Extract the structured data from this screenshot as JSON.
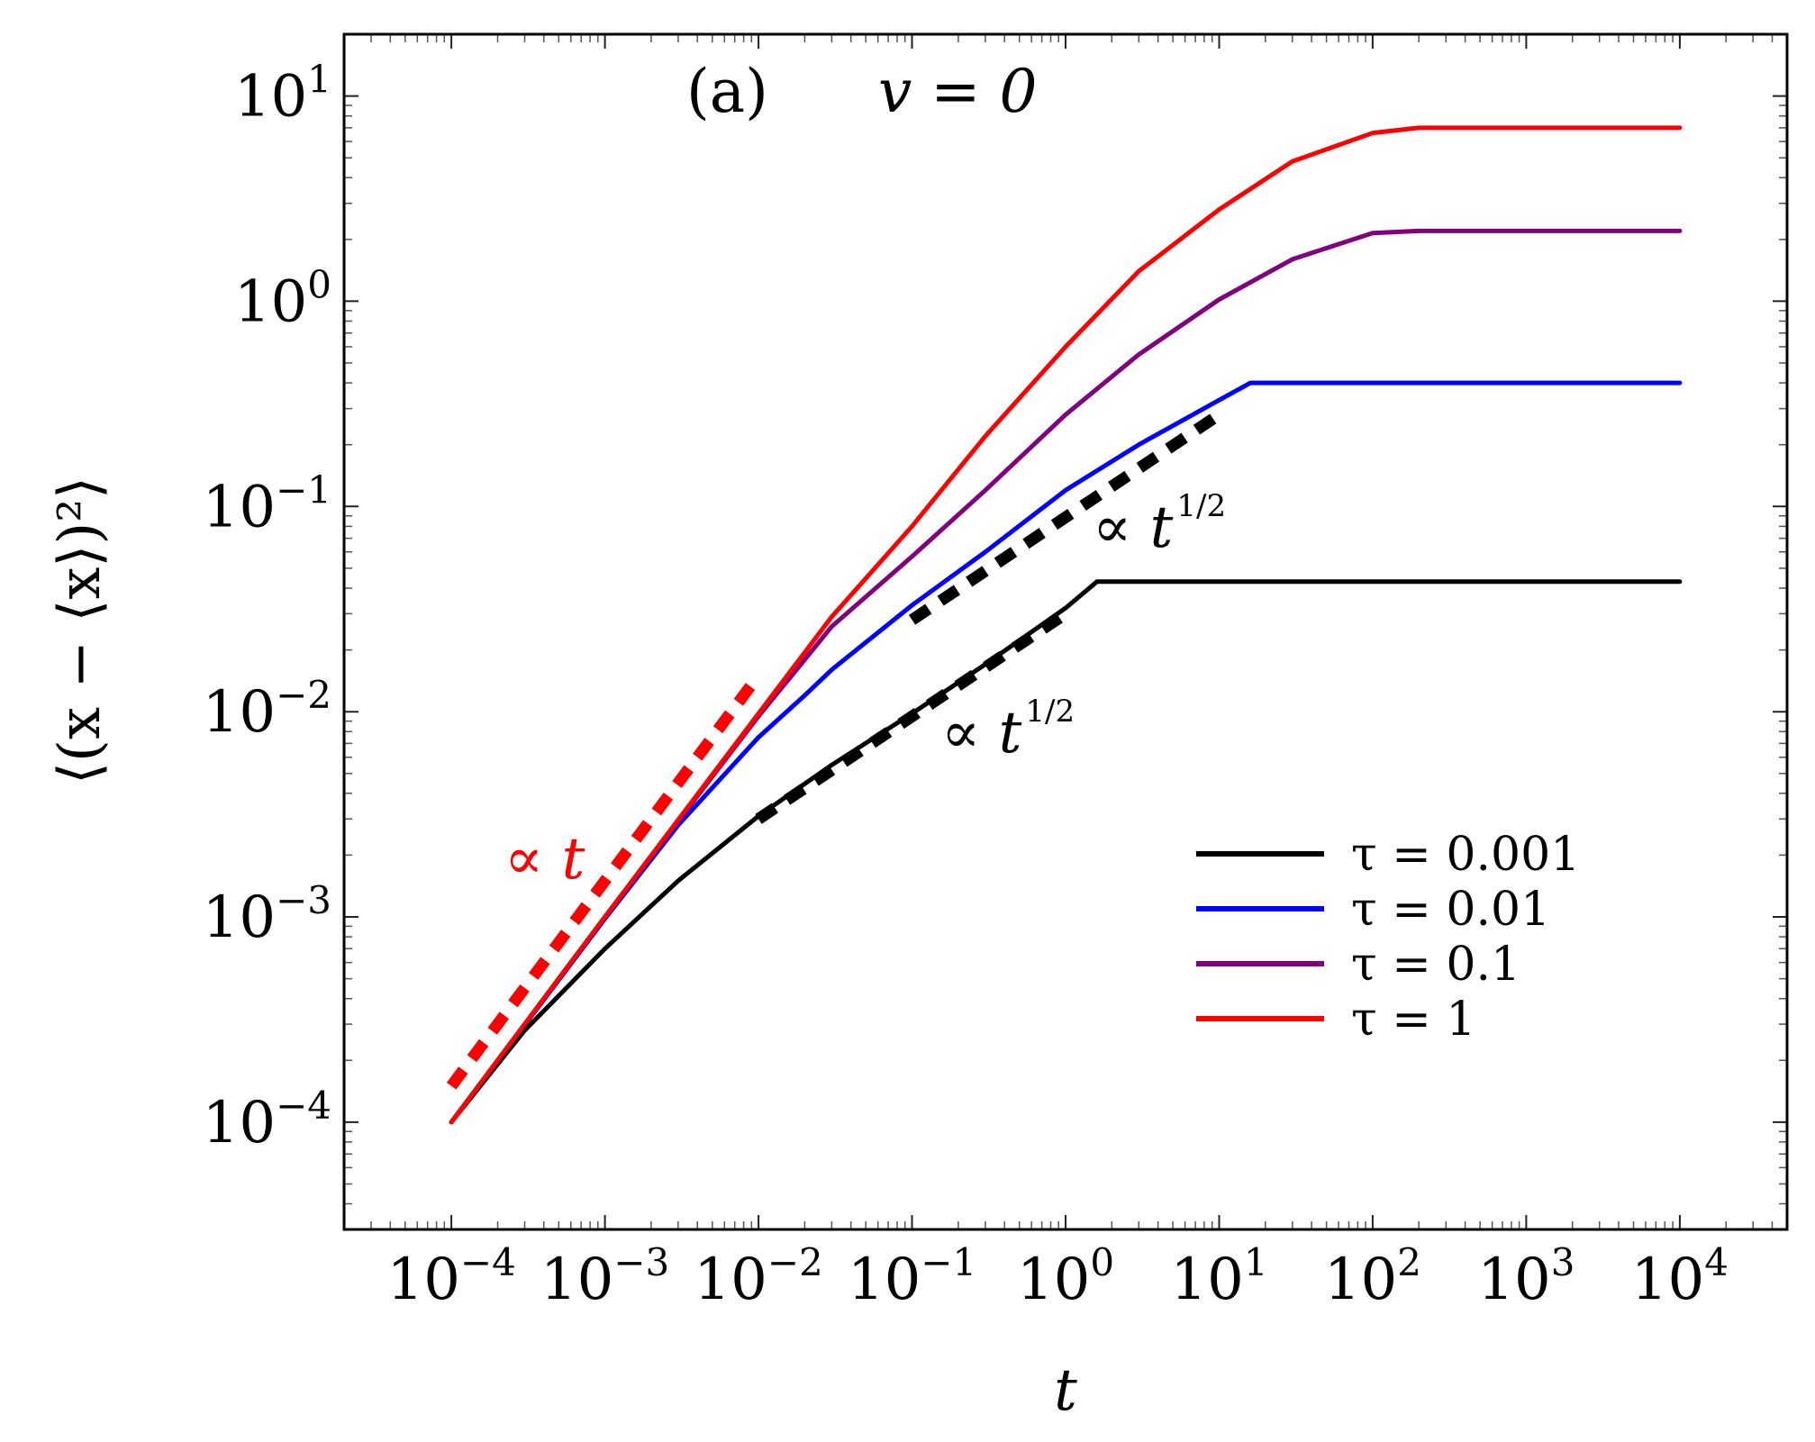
{
  "chart_data": {
    "type": "line",
    "scale": {
      "x": "log",
      "y": "log"
    },
    "xlim": [
      2e-05,
      50000
    ],
    "ylim": [
      3e-05,
      20
    ],
    "xlabel": "t",
    "ylabel": "⟨(x − ⟨x⟩)²⟩",
    "panel_label": "(a)",
    "parameter_label": "v = 0",
    "x_ticks": [
      {
        "base": "10",
        "exp": "−4",
        "value": 0.0001
      },
      {
        "base": "10",
        "exp": "−3",
        "value": 0.001
      },
      {
        "base": "10",
        "exp": "−2",
        "value": 0.01
      },
      {
        "base": "10",
        "exp": "−1",
        "value": 0.1
      },
      {
        "base": "10",
        "exp": "0",
        "value": 1
      },
      {
        "base": "10",
        "exp": "1",
        "value": 10
      },
      {
        "base": "10",
        "exp": "2",
        "value": 100
      },
      {
        "base": "10",
        "exp": "3",
        "value": 1000
      },
      {
        "base": "10",
        "exp": "4",
        "value": 10000
      }
    ],
    "y_ticks": [
      {
        "base": "10",
        "exp": "−4",
        "value": 0.0001
      },
      {
        "base": "10",
        "exp": "−3",
        "value": 0.001
      },
      {
        "base": "10",
        "exp": "−2",
        "value": 0.01
      },
      {
        "base": "10",
        "exp": "−1",
        "value": 0.1
      },
      {
        "base": "10",
        "exp": "0",
        "value": 1
      },
      {
        "base": "10",
        "exp": "1",
        "value": 10
      }
    ],
    "grid": false,
    "legend_position": "lower-right",
    "series": [
      {
        "name": "τ = 0.001",
        "color": "#000000",
        "points": [
          [
            0.0001,
            0.0001
          ],
          [
            0.0003,
            0.00028
          ],
          [
            0.001,
            0.0007
          ],
          [
            0.003,
            0.0015
          ],
          [
            0.01,
            0.0031
          ],
          [
            0.03,
            0.0055
          ],
          [
            0.1,
            0.0098
          ],
          [
            0.3,
            0.017
          ],
          [
            1,
            0.032
          ],
          [
            1.6,
            0.043
          ],
          [
            10,
            0.043
          ],
          [
            10000,
            0.043
          ]
        ]
      },
      {
        "name": "τ = 0.01",
        "color": "#0000ff",
        "points": [
          [
            0.0001,
            0.0001
          ],
          [
            0.001,
            0.00098
          ],
          [
            0.003,
            0.0028
          ],
          [
            0.01,
            0.0075
          ],
          [
            0.02,
            0.012
          ],
          [
            0.03,
            0.016
          ],
          [
            0.1,
            0.033
          ],
          [
            0.3,
            0.06
          ],
          [
            1,
            0.12
          ],
          [
            3,
            0.2
          ],
          [
            10,
            0.33
          ],
          [
            16,
            0.4
          ],
          [
            10000,
            0.4
          ]
        ]
      },
      {
        "name": "τ = 0.1",
        "color": "#800080",
        "points": [
          [
            0.0001,
            0.0001
          ],
          [
            0.001,
            0.001
          ],
          [
            0.01,
            0.0095
          ],
          [
            0.03,
            0.026
          ],
          [
            0.1,
            0.057
          ],
          [
            0.3,
            0.12
          ],
          [
            1,
            0.28
          ],
          [
            3,
            0.55
          ],
          [
            10,
            1.02
          ],
          [
            30,
            1.6
          ],
          [
            100,
            2.15
          ],
          [
            200,
            2.2
          ],
          [
            10000,
            2.2
          ]
        ]
      },
      {
        "name": "τ = 1",
        "color": "#ff0000",
        "points": [
          [
            0.0001,
            0.0001
          ],
          [
            0.001,
            0.001
          ],
          [
            0.01,
            0.0098
          ],
          [
            0.03,
            0.029
          ],
          [
            0.1,
            0.08
          ],
          [
            0.3,
            0.22
          ],
          [
            1,
            0.6
          ],
          [
            3,
            1.4
          ],
          [
            10,
            2.8
          ],
          [
            30,
            4.8
          ],
          [
            100,
            6.6
          ],
          [
            200,
            7
          ],
          [
            10000,
            7
          ]
        ]
      }
    ],
    "guides": [
      {
        "label_prefix": "∝ ",
        "label_var": "t",
        "label_exp": "",
        "color": "#ff0000",
        "x": [
          0.0001,
          0.01
        ],
        "y": [
          0.00015,
          0.015
        ]
      },
      {
        "label_prefix": "∝ ",
        "label_var": "t",
        "label_exp": "1/2",
        "color": "#000000",
        "x": [
          0.01,
          1
        ],
        "y": [
          0.003,
          0.03
        ]
      },
      {
        "label_prefix": "∝ ",
        "label_var": "t",
        "label_exp": "1/2",
        "color": "#000000",
        "x": [
          0.1,
          10
        ],
        "y": [
          0.028,
          0.28
        ]
      }
    ]
  }
}
